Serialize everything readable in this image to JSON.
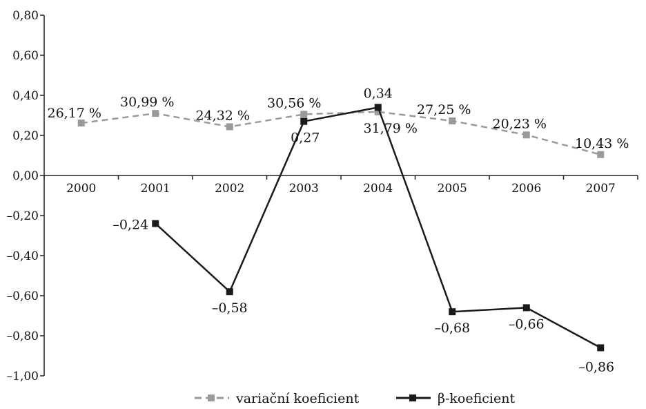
{
  "chart_data": {
    "type": "line",
    "categories": [
      "2000",
      "2001",
      "2002",
      "2003",
      "2004",
      "2005",
      "2006",
      "2007"
    ],
    "y_ticks": [
      "0,80",
      "0,60",
      "0,40",
      "0,20",
      "0,00",
      "–0,20",
      "–0,40",
      "–0,60",
      "–0,80",
      "–1,00"
    ],
    "ylim": [
      -1.0,
      0.8
    ],
    "grid": false,
    "legend_position": "bottom",
    "series": [
      {
        "name": "variační koeficient",
        "style": "dashed",
        "color": "#9a9a9a",
        "values": [
          0.2617,
          0.3099,
          0.2432,
          0.3056,
          0.3179,
          0.2725,
          0.2023,
          0.1043
        ],
        "labels": [
          "26,17 %",
          "30,99 %",
          "24,32 %",
          "30,56 %",
          "31,79 %",
          "27,25 %",
          "20,23 %",
          "10,43 %"
        ]
      },
      {
        "name": "β-koeficient",
        "style": "solid",
        "color": "#1a1a1a",
        "values": [
          null,
          -0.24,
          -0.58,
          0.27,
          0.34,
          -0.68,
          -0.66,
          -0.86
        ],
        "labels": [
          "",
          "–0,24",
          "–0,58",
          "0,27",
          "0,34",
          "–0,68",
          "–0,66",
          "–0,86"
        ]
      }
    ]
  }
}
